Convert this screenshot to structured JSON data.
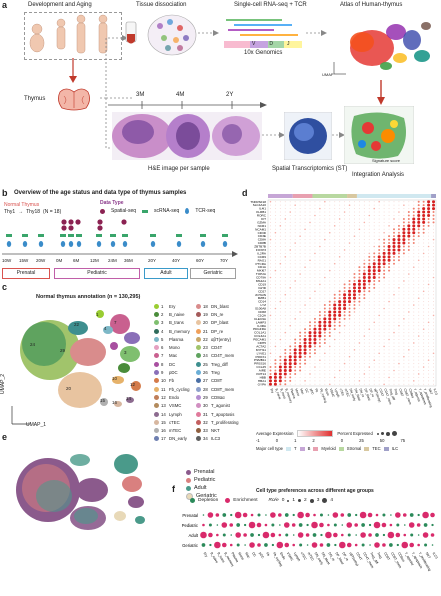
{
  "panel_a": {
    "label": "a",
    "development": "Development and Aging",
    "thymus": "Thymus",
    "tissue": "Tissue dissociation",
    "scseq": "Single-cell RNA-seq + TCR",
    "genomics": "10x Genomics",
    "vdj": [
      "V",
      "D",
      "J"
    ],
    "atlas": "Atlas of Human-thymus",
    "umap": "UMAP",
    "ages": [
      "3M",
      "4M",
      "2Y"
    ],
    "he": "H&E image per sample",
    "st": "Spatial Transcriptomics (ST)",
    "integration": "Integration Analysis",
    "sig_score": "Signature score"
  },
  "panel_b": {
    "label": "b",
    "title": "Overview of the age status and data type of thymus samples",
    "normal": "Normal Thymus",
    "thy": "Thy1",
    "thy_range": "Thy18",
    "n": "(N = 18)",
    "data_type": "Data Type",
    "types": [
      "Spatial-seq",
      "scRNA-seq",
      "TCR-seq"
    ],
    "ticks": [
      "10W",
      "15W",
      "20W",
      "0M",
      "6M",
      "12M",
      "24M",
      "36M",
      "20Y",
      "40Y",
      "60Y",
      "70Y"
    ],
    "stages": [
      "Prenatal",
      "Pediatric",
      "Adult",
      "Geriatric"
    ]
  },
  "panel_c": {
    "label": "c",
    "title": "Normal thymus annotation (n = 130,295)",
    "xlabel": "UMAP_1",
    "ylabel": "UMAP_2",
    "col1": [
      {
        "n": "1",
        "name": "Ery",
        "color": "#9acd32"
      },
      {
        "n": "2",
        "name": "B_naive",
        "color": "#4a8c3a"
      },
      {
        "n": "3",
        "name": "B_trans",
        "color": "#7fbf6f"
      },
      {
        "n": "4",
        "name": "B_memory",
        "color": "#2f6b5b"
      },
      {
        "n": "5",
        "name": "Plasma",
        "color": "#7db8c7"
      },
      {
        "n": "6",
        "name": "Mono",
        "color": "#e5a0c0"
      },
      {
        "n": "7",
        "name": "Mac",
        "color": "#c9608f"
      },
      {
        "n": "8",
        "name": "DC",
        "color": "#a84fa0"
      },
      {
        "n": "9",
        "name": "pDC",
        "color": "#8a6fb8"
      },
      {
        "n": "10",
        "name": "Fb",
        "color": "#d47b4a"
      },
      {
        "n": "11",
        "name": "Fb_cycling",
        "color": "#e6b26a"
      },
      {
        "n": "12",
        "name": "Endo",
        "color": "#c07e58"
      },
      {
        "n": "13",
        "name": "VSMC",
        "color": "#b38b5d"
      },
      {
        "n": "14",
        "name": "Lymph",
        "color": "#8c6b8f"
      },
      {
        "n": "15",
        "name": "cTEC",
        "color": "#d7b7a0"
      },
      {
        "n": "16",
        "name": "mTEC",
        "color": "#b0b0b0"
      },
      {
        "n": "17",
        "name": "DN_early",
        "color": "#6e7fb0"
      }
    ],
    "col2": [
      {
        "n": "18",
        "name": "DN_blast",
        "color": "#d98c8c"
      },
      {
        "n": "19",
        "name": "DN_re",
        "color": "#a45a5a"
      },
      {
        "n": "20",
        "name": "DP_blast",
        "color": "#e8c4a0"
      },
      {
        "n": "21",
        "name": "DP_re",
        "color": "#f0a05a"
      },
      {
        "n": "22",
        "name": "αβT(entry)",
        "color": "#c9a86a"
      },
      {
        "n": "23",
        "name": "CD4T",
        "color": "#a1c46b"
      },
      {
        "n": "24",
        "name": "CD4T_mem",
        "color": "#5fa35f"
      },
      {
        "n": "25",
        "name": "Treg_diff",
        "color": "#3e8f8f"
      },
      {
        "n": "26",
        "name": "Treg",
        "color": "#6aaed6"
      },
      {
        "n": "27",
        "name": "CD8T",
        "color": "#4a6fa5"
      },
      {
        "n": "28",
        "name": "CD8T_mem",
        "color": "#8da0cb"
      },
      {
        "n": "29",
        "name": "CD8αα",
        "color": "#b48ed0"
      },
      {
        "n": "30",
        "name": "T_agonist",
        "color": "#d18fc1"
      },
      {
        "n": "31",
        "name": "T_apoptosis",
        "color": "#e07a9b"
      },
      {
        "n": "32",
        "name": "T_proliferating",
        "color": "#c35f5f"
      },
      {
        "n": "33",
        "name": "NKT",
        "color": "#8f5f3f"
      },
      {
        "n": "34",
        "name": "ILC3",
        "color": "#5f5f5f"
      }
    ],
    "cluster_labels": [
      "29",
      "24",
      "22",
      "25",
      "7",
      "5",
      "4",
      "2",
      "3",
      "10",
      "12",
      "14",
      "15",
      "16",
      "19",
      "20",
      "30",
      "31",
      "32",
      "33",
      "34",
      "11",
      "1"
    ]
  },
  "panel_d": {
    "label": "d",
    "legend_avg": "Average Expression",
    "legend_pct": "Percent Expressed",
    "legend_major": "Major cell type",
    "avg_ticks": [
      "-1",
      "0",
      "1",
      "2"
    ],
    "pct_ticks": [
      "0",
      "25",
      "50",
      "75"
    ],
    "major_types": [
      "T",
      "B",
      "Myeloid",
      "Stromal",
      "TEC",
      "ILC"
    ],
    "genes": [
      "TNFRSF18",
      "SLC4A10",
      "IL4I1",
      "KLRB1",
      "RORC",
      "KIT",
      "GZMA",
      "NCR1",
      "NCAM1",
      "CD3D",
      "CD3E",
      "CD8A",
      "CD8B",
      "ZBTB7B",
      "FOXP3",
      "IL2RA",
      "CCR9",
      "RAG1",
      "PTCRA",
      "CD1A",
      "MKI67",
      "TOP2A",
      "CD79A",
      "MS4A1",
      "CD19",
      "IGHD",
      "CD27",
      "JCHAIN",
      "MZB1",
      "CD14",
      "LYZ",
      "S100A8",
      "CD68",
      "C1QA",
      "CLEC9A",
      "LAMP3",
      "IL3RA",
      "PDGFRA",
      "COL1A1",
      "COL3A1",
      "PECAM1",
      "CDH5",
      "ACTA2",
      "MYH11",
      "LYVE1",
      "PROX1",
      "PSMB11",
      "PRSS16",
      "CCL25",
      "AIRE",
      "KRT14",
      "HBB",
      "HBA1",
      "GYPA"
    ],
    "clusters": [
      "Ery",
      "B_naive",
      "B_trans",
      "B_memory",
      "Plasma",
      "Mono",
      "Mac",
      "DC",
      "pDC",
      "Fb",
      "Fb_cycling",
      "Endo",
      "VSMC",
      "Lymph",
      "cTEC",
      "mTEC",
      "DN_early",
      "DN_blast",
      "DN_re",
      "DP_blast",
      "DP_re",
      "αβT(entry)",
      "CD4T",
      "CD4T_mem",
      "Treg_diff",
      "Treg",
      "CD8T",
      "CD8T_mem",
      "CD8αα",
      "T_agonist",
      "T_apoptosis",
      "T_proliferating",
      "NKT",
      "ILC3"
    ]
  },
  "panel_e": {
    "label": "e",
    "groups": [
      {
        "name": "Prenatal",
        "color": "#8b5a8c"
      },
      {
        "name": "Pediatric",
        "color": "#d9807f"
      },
      {
        "name": "Adult",
        "color": "#4a9a8a"
      },
      {
        "name": "Geriatric",
        "color": "#e8d9b8"
      }
    ]
  },
  "panel_f": {
    "label": "f",
    "title": "Cell type preferences across different age groups",
    "depletion": "Depletion",
    "enrichment": "Enrichment",
    "roe": "Ro/e",
    "roe_ticks": [
      "0",
      "1",
      "2",
      "3",
      "4"
    ],
    "rows": [
      "Prenatal",
      "Pediatric",
      "Adult",
      "Geriatric"
    ]
  },
  "colors": {
    "prenatal": "#d9534f",
    "pediatric": "#c05fa8",
    "adult": "#3a9ac9",
    "geriatric": "#a0a0a0",
    "depletion": "#2b8a5a",
    "enrichment": "#d92a6b",
    "dot_red": "#e03030"
  }
}
